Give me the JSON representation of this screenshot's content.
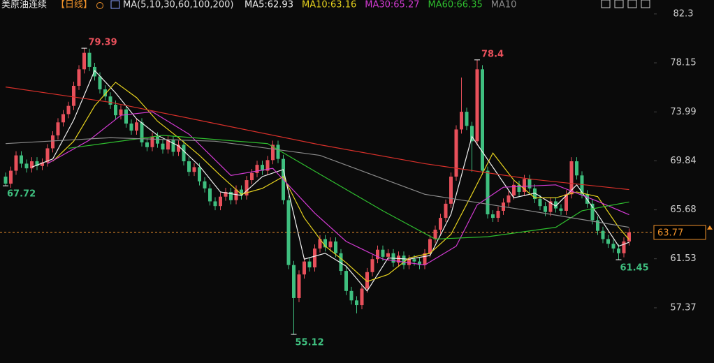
{
  "chart_data": {
    "type": "candlestick",
    "title": "美原油连续",
    "period": "【日线】",
    "ma_legend": "MA(5,10,30,60,100,200)",
    "ylim": [
      52.69,
      83.48
    ],
    "yticks": [
      82.3,
      78.15,
      73.99,
      69.84,
      65.68,
      61.53,
      57.37
    ],
    "up_color": "#e8505b",
    "down_color": "#3fbf7f",
    "open": [
      68.5,
      67.9,
      69.0,
      70.3,
      69.6,
      69.2,
      69.8,
      69.4,
      69.7,
      70.9,
      72.0,
      73.1,
      73.8,
      74.5,
      76.2,
      77.6,
      79.0,
      77.8,
      77.0,
      75.9,
      75.3,
      74.6,
      73.7,
      74.2,
      73.0,
      72.4,
      73.1,
      71.4,
      71.0,
      71.9,
      71.3,
      70.8,
      71.6,
      70.6,
      71.2,
      69.8,
      68.9,
      69.3,
      68.1,
      67.5,
      66.4,
      66.0,
      66.8,
      67.2,
      66.5,
      67.4,
      66.9,
      68.2,
      68.8,
      69.5,
      69.0,
      69.9,
      71.2,
      70.0,
      66.5,
      61.0,
      58.2,
      60.2,
      61.3,
      60.8,
      62.4,
      63.2,
      62.5,
      63.0,
      62.0,
      60.5,
      58.8,
      58.0,
      57.6,
      59.0,
      60.4,
      61.5,
      62.3,
      61.7,
      62.0,
      61.2,
      61.8,
      61.0,
      61.5,
      61.3,
      61.0,
      62.0,
      63.2,
      64.0,
      65.0,
      66.2,
      68.5,
      72.5,
      74.0,
      72.8,
      71.5,
      77.6,
      69.0,
      65.3,
      65.0,
      65.6,
      66.3,
      66.9,
      67.8,
      67.2,
      68.3,
      67.5,
      66.6,
      66.0,
      65.5,
      66.4,
      65.8,
      65.6,
      67.0,
      69.8,
      68.6,
      67.0,
      66.2,
      64.8,
      63.9,
      63.2,
      62.8,
      62.4,
      62.0,
      63.0
    ],
    "high": [
      68.85,
      69.35,
      70.65,
      70.65,
      69.95,
      70.15,
      70.15,
      70.05,
      71.25,
      72.35,
      73.45,
      74.15,
      74.85,
      76.55,
      77.95,
      79.39,
      79.35,
      78.15,
      77.35,
      76.25,
      75.65,
      74.95,
      74.55,
      74.55,
      73.35,
      73.45,
      73.45,
      71.75,
      72.25,
      72.25,
      71.65,
      71.95,
      71.95,
      71.55,
      71.55,
      70.15,
      69.65,
      69.65,
      68.45,
      67.85,
      66.75,
      67.15,
      67.55,
      67.55,
      67.75,
      67.75,
      68.55,
      69.15,
      69.85,
      69.85,
      70.25,
      71.55,
      71.55,
      70.35,
      66.85,
      61.35,
      60.55,
      61.65,
      61.65,
      62.75,
      63.55,
      63.55,
      63.35,
      63.35,
      62.35,
      60.85,
      59.15,
      58.35,
      59.35,
      60.75,
      61.85,
      62.65,
      62.65,
      62.35,
      62.35,
      62.15,
      62.15,
      61.85,
      61.85,
      61.65,
      62.35,
      63.55,
      64.35,
      65.35,
      66.55,
      68.85,
      72.85,
      76.9,
      74.35,
      73.15,
      78.4,
      77.95,
      69.35,
      65.65,
      65.95,
      66.65,
      67.25,
      68.15,
      68.15,
      68.65,
      68.65,
      67.85,
      66.95,
      66.35,
      66.75,
      66.75,
      66.15,
      67.35,
      70.15,
      70.15,
      68.95,
      67.35,
      66.55,
      65.15,
      64.25,
      63.55,
      63.15,
      62.75,
      63.35,
      64.1
    ],
    "low": [
      67.72,
      67.55,
      68.65,
      69.25,
      68.85,
      68.85,
      69.05,
      69.05,
      69.35,
      70.55,
      71.65,
      72.75,
      73.45,
      74.15,
      75.85,
      77.25,
      77.45,
      76.65,
      75.55,
      74.95,
      74.25,
      73.35,
      73.35,
      72.65,
      72.05,
      72.05,
      71.05,
      70.65,
      70.65,
      70.95,
      70.45,
      70.45,
      70.25,
      70.25,
      69.45,
      68.55,
      68.55,
      67.75,
      67.15,
      66.05,
      65.65,
      65.65,
      66.45,
      66.15,
      66.15,
      66.55,
      66.55,
      67.85,
      68.45,
      68.65,
      68.65,
      69.55,
      69.65,
      66.15,
      60.65,
      55.12,
      57.85,
      59.85,
      60.45,
      60.45,
      62.05,
      62.15,
      62.15,
      61.65,
      60.15,
      58.45,
      57.65,
      56.9,
      57.25,
      58.65,
      60.05,
      61.15,
      61.35,
      61.35,
      60.85,
      60.85,
      60.65,
      60.65,
      60.95,
      60.65,
      60.65,
      61.65,
      62.85,
      63.65,
      64.65,
      65.85,
      68.15,
      72.15,
      72.45,
      68.9,
      71.15,
      68.65,
      64.95,
      64.65,
      64.65,
      65.25,
      65.95,
      66.55,
      66.85,
      66.85,
      67.15,
      66.25,
      65.65,
      65.15,
      65.15,
      65.45,
      65.25,
      65.25,
      66.65,
      68.25,
      66.65,
      65.85,
      64.45,
      63.55,
      62.85,
      62.45,
      62.05,
      61.45,
      61.65,
      62.65
    ],
    "close": [
      67.9,
      69.0,
      70.3,
      69.6,
      69.2,
      69.8,
      69.4,
      69.7,
      70.9,
      72.0,
      73.1,
      73.8,
      74.5,
      76.2,
      77.6,
      79.0,
      77.8,
      77.0,
      75.9,
      75.3,
      74.6,
      73.7,
      74.2,
      73.0,
      72.4,
      73.1,
      71.4,
      71.0,
      71.9,
      71.3,
      70.8,
      71.6,
      70.6,
      71.2,
      69.8,
      68.9,
      69.3,
      68.1,
      67.5,
      66.4,
      66.0,
      66.8,
      67.2,
      66.5,
      67.4,
      66.9,
      68.2,
      68.8,
      69.5,
      69.0,
      69.9,
      71.2,
      70.0,
      66.5,
      61.0,
      58.2,
      60.2,
      61.3,
      60.8,
      62.4,
      63.2,
      62.5,
      63.0,
      62.0,
      60.5,
      58.8,
      58.0,
      57.6,
      59.0,
      60.4,
      61.5,
      62.3,
      61.7,
      62.0,
      61.2,
      61.8,
      61.0,
      61.5,
      61.3,
      61.0,
      62.0,
      63.2,
      64.0,
      65.0,
      66.2,
      68.5,
      72.5,
      74.0,
      72.8,
      71.5,
      77.6,
      69.0,
      65.3,
      65.0,
      65.6,
      66.3,
      66.9,
      67.8,
      67.2,
      68.3,
      67.5,
      66.6,
      66.0,
      65.5,
      66.4,
      65.8,
      65.6,
      67.0,
      69.8,
      68.6,
      67.0,
      66.2,
      64.8,
      63.9,
      63.2,
      62.8,
      62.4,
      62.0,
      63.0,
      63.77
    ],
    "series": [
      {
        "name": "MA5:62.93",
        "color": "#f0f0f0",
        "x": [
          5,
          9,
          13,
          17,
          21,
          25,
          29,
          33,
          37,
          41,
          45,
          49,
          53,
          57,
          61,
          65,
          69,
          73,
          77,
          81,
          85,
          89,
          93,
          97,
          101,
          105,
          109,
          113,
          117,
          119
        ],
        "values": [
          69.3,
          70.0,
          73.3,
          77.5,
          75.6,
          73.4,
          72.0,
          71.1,
          69.4,
          67.2,
          66.9,
          68.5,
          69.1,
          61.5,
          62.0,
          60.9,
          58.8,
          61.6,
          61.5,
          61.8,
          65.3,
          71.9,
          69.3,
          66.7,
          67.1,
          66.0,
          67.8,
          65.3,
          62.6,
          62.93
        ]
      },
      {
        "name": "MA10:63.16",
        "color": "#e6d21e",
        "x": [
          9,
          13,
          17,
          21,
          25,
          29,
          33,
          37,
          41,
          45,
          49,
          53,
          57,
          61,
          65,
          69,
          73,
          77,
          81,
          85,
          89,
          93,
          97,
          101,
          105,
          109,
          113,
          117,
          119
        ],
        "values": [
          69.8,
          71.5,
          74.5,
          76.5,
          75.2,
          73.2,
          71.8,
          70.3,
          68.6,
          67.0,
          67.5,
          68.5,
          65.0,
          62.6,
          61.2,
          59.6,
          60.2,
          61.6,
          62.0,
          63.6,
          67.0,
          70.5,
          68.2,
          66.7,
          66.7,
          67.2,
          66.8,
          64.2,
          63.16
        ]
      },
      {
        "name": "MA30:65.27",
        "color": "#d43bd4",
        "x": [
          8,
          16,
          22,
          28,
          35,
          43,
          51,
          59,
          65,
          72,
          80,
          86,
          90,
          95,
          105,
          113,
          119
        ],
        "values": [
          69.6,
          71.6,
          73.7,
          74.0,
          72.1,
          68.6,
          69.2,
          65.4,
          63.0,
          61.5,
          61.0,
          62.6,
          66.1,
          67.6,
          67.8,
          66.4,
          65.27
        ]
      },
      {
        "name": "MA60:66.35",
        "color": "#2fbf2f",
        "x": [
          12,
          30,
          50,
          60,
          72,
          82,
          92,
          105,
          110,
          119
        ],
        "values": [
          70.9,
          72.0,
          71.3,
          68.7,
          65.6,
          63.2,
          63.4,
          64.2,
          65.6,
          66.35
        ]
      },
      {
        "name": "MA10",
        "color": "#8c8c8c",
        "x": [
          0,
          20,
          40,
          60,
          80,
          100,
          119
        ],
        "values": [
          71.3,
          71.8,
          71.5,
          70.3,
          67.0,
          65.6,
          64.2
        ]
      },
      {
        "color": "#d8302a",
        "x": [
          0,
          20,
          40,
          60,
          80,
          100,
          119
        ],
        "values": [
          76.1,
          74.8,
          73.0,
          71.2,
          69.6,
          68.3,
          67.4
        ]
      }
    ],
    "high_marks": [
      {
        "index": 15,
        "value": 79.39
      },
      {
        "index": 90,
        "value": 78.4
      }
    ],
    "low_marks": [
      {
        "index": 0,
        "value": 67.72
      },
      {
        "index": 55,
        "value": 55.12
      },
      {
        "index": 117,
        "value": 61.45
      }
    ],
    "last_price": 63.77,
    "last_color": "#f0922a"
  }
}
